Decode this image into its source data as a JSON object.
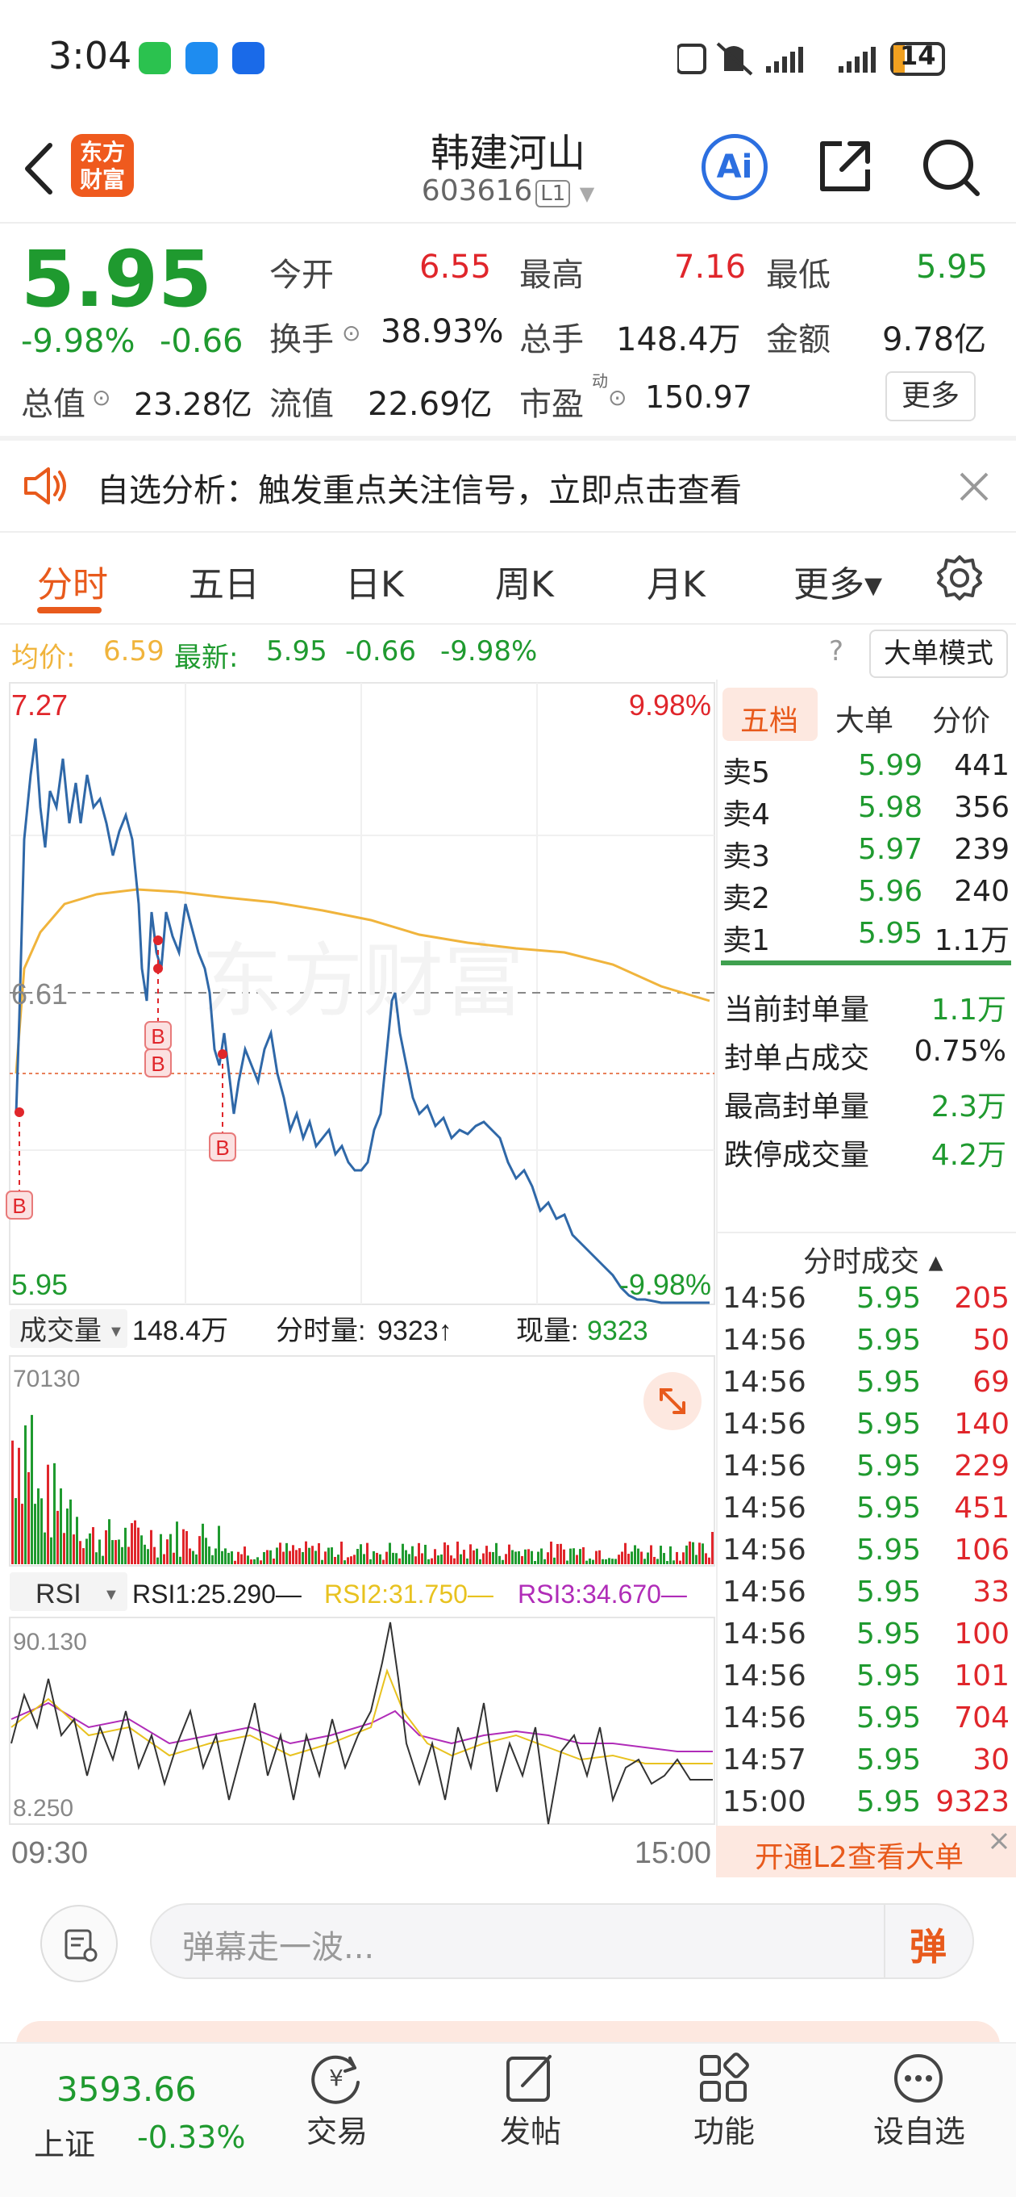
{
  "status_bar": {
    "time": "3:04",
    "battery": "14"
  },
  "header": {
    "stock_name": "韩建河山",
    "stock_code": "603616",
    "level": "L1",
    "logo_text_1": "东方",
    "logo_text_2": "财富",
    "ai_label": "Ai"
  },
  "quote": {
    "price": "5.95",
    "change_pct": "-9.98%",
    "change": "-0.66",
    "open_label": "今开",
    "open": "6.55",
    "high_label": "最高",
    "high": "7.16",
    "low_label": "最低",
    "low": "5.95",
    "turnover_label": "换手",
    "turnover": "38.93%",
    "volume_label": "总手",
    "volume": "148.4万",
    "amount_label": "金额",
    "amount": "9.78亿",
    "mktcap_label": "总值",
    "mktcap": "23.28亿",
    "float_label": "流值",
    "float_cap": "22.69亿",
    "pe_label": "市盈",
    "pe_sup": "动",
    "pe": "150.97",
    "more_label": "更多"
  },
  "notice": {
    "text": "自选分析：触发重点关注信号，立即点击查看"
  },
  "tabs": [
    {
      "label": "分时"
    },
    {
      "label": "五日"
    },
    {
      "label": "日K"
    },
    {
      "label": "周K"
    },
    {
      "label": "月K"
    },
    {
      "label": "更多▾"
    }
  ],
  "info_strip": {
    "avg_label": "均价:",
    "avg": "6.59",
    "latest_label": "最新:",
    "latest": "5.95",
    "latest_chg": "-0.66",
    "latest_pct": "-9.98%",
    "big_order_mode": "大单模式"
  },
  "intraday": {
    "y_top": "7.27",
    "y_mid": "6.61",
    "y_bottom": "5.95",
    "pct_top": "9.98%",
    "pct_bottom": "-9.98%",
    "watermark": "东方财富",
    "buy_marker": "B"
  },
  "volume_panel": {
    "selector": "成交量",
    "total": "148.4万",
    "tick_label": "分时量:",
    "tick_value": "9323↑",
    "now_label": "现量:",
    "now_value": "9323",
    "y_max": "70130"
  },
  "rsi_panel": {
    "selector": "RSI",
    "rsi1_label": "RSI1:",
    "rsi1": "25.290",
    "rsi2_label": "RSI2:",
    "rsi2": "31.750",
    "rsi3_label": "RSI3:",
    "rsi3": "34.670",
    "y_max": "90.130",
    "y_min": "8.250",
    "time_start": "09:30",
    "time_end": "15:00"
  },
  "order_book": {
    "tabs": [
      "五档",
      "大单",
      "分价"
    ],
    "asks": [
      {
        "label": "卖5",
        "price": "5.99",
        "vol": "441"
      },
      {
        "label": "卖4",
        "price": "5.98",
        "vol": "356"
      },
      {
        "label": "卖3",
        "price": "5.97",
        "vol": "239"
      },
      {
        "label": "卖2",
        "price": "5.96",
        "vol": "240"
      },
      {
        "label": "卖1",
        "price": "5.95",
        "vol": "1.1万"
      }
    ],
    "seal": [
      {
        "label": "当前封单量",
        "value": "1.1万"
      },
      {
        "label": "封单占成交",
        "value": "0.75%"
      },
      {
        "label": "最高封单量",
        "value": "2.3万"
      },
      {
        "label": "跌停成交量",
        "value": "4.2万"
      }
    ]
  },
  "ticks": {
    "title": "分时成交 ▴",
    "rows": [
      {
        "time": "14:56",
        "price": "5.95",
        "vol": "205"
      },
      {
        "time": "14:56",
        "price": "5.95",
        "vol": "50"
      },
      {
        "time": "14:56",
        "price": "5.95",
        "vol": "69"
      },
      {
        "time": "14:56",
        "price": "5.95",
        "vol": "140"
      },
      {
        "time": "14:56",
        "price": "5.95",
        "vol": "229"
      },
      {
        "time": "14:56",
        "price": "5.95",
        "vol": "451"
      },
      {
        "time": "14:56",
        "price": "5.95",
        "vol": "106"
      },
      {
        "time": "14:56",
        "price": "5.95",
        "vol": "33"
      },
      {
        "time": "14:56",
        "price": "5.95",
        "vol": "100"
      },
      {
        "time": "14:56",
        "price": "5.95",
        "vol": "101"
      },
      {
        "time": "14:56",
        "price": "5.95",
        "vol": "704"
      },
      {
        "time": "14:57",
        "price": "5.95",
        "vol": "30"
      },
      {
        "time": "15:00",
        "price": "5.95",
        "vol": "9323"
      }
    ],
    "l2_banner": "开通L2查看大单"
  },
  "danmu": {
    "placeholder": "弹幕走一波...",
    "send_label": "弹"
  },
  "bottom_nav": {
    "index_value": "3593.66",
    "index_name": "上证",
    "index_pct": "-0.33%",
    "items": [
      {
        "label": "交易"
      },
      {
        "label": "发帖"
      },
      {
        "label": "功能"
      },
      {
        "label": "设自选"
      }
    ]
  },
  "colors": {
    "up": "#e0262b",
    "down": "#1f9a2f",
    "accent": "#e85a1c",
    "price_line": "#2f68a8",
    "avg_line": "#f0b43c",
    "rsi2": "#e8c21f",
    "rsi3": "#b02cb8"
  }
}
